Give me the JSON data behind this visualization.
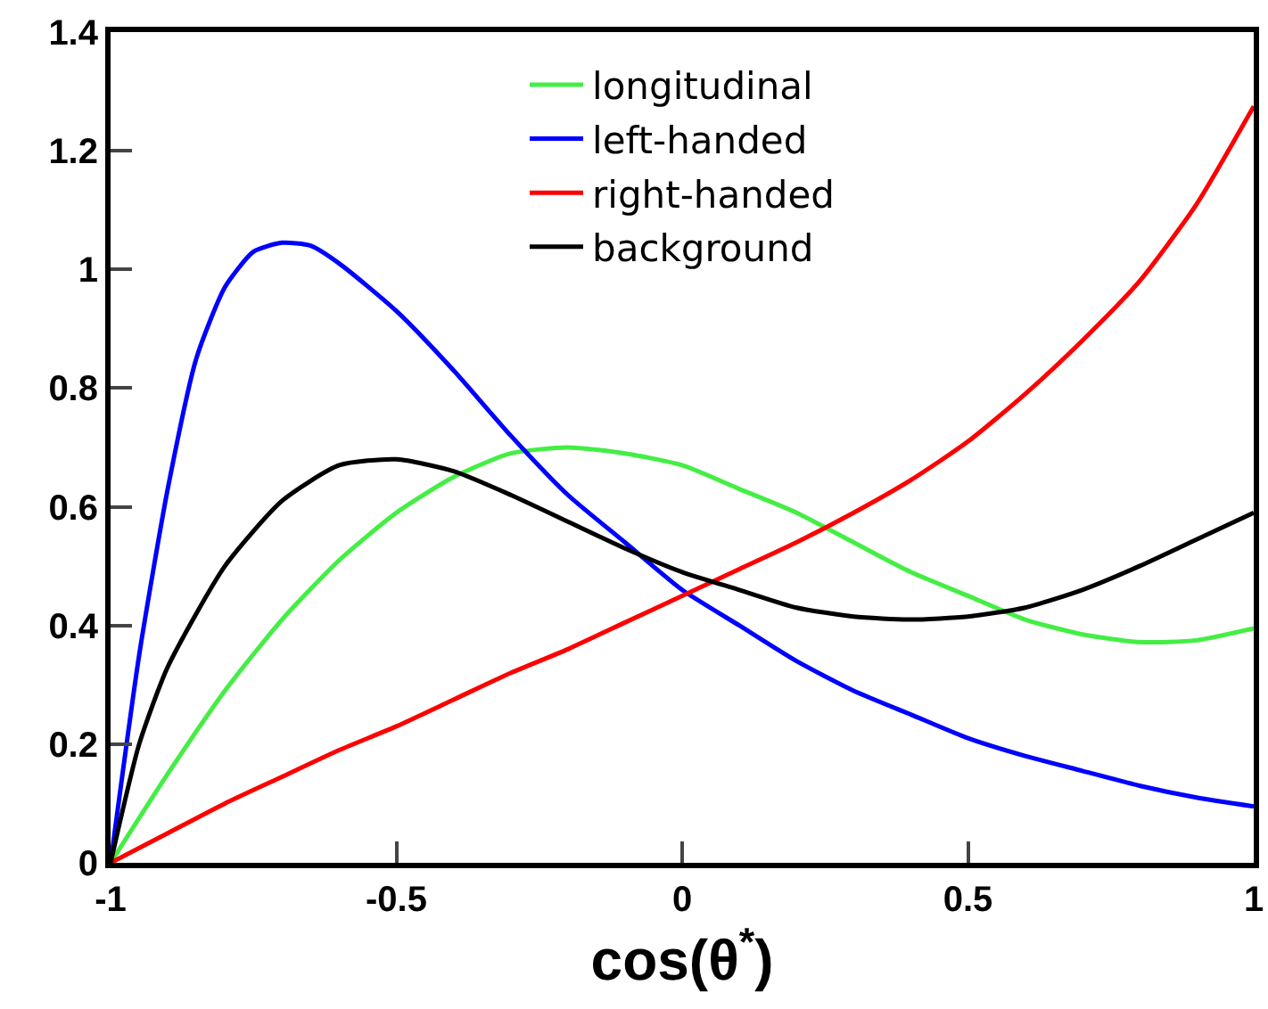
{
  "chart_data": {
    "type": "line",
    "xlabel": "cos(θ$^{*}$)",
    "xlim": [
      -1,
      1
    ],
    "xticks": [
      -1,
      -0.5,
      0,
      0.5,
      1
    ],
    "ylim": [
      0,
      1.4
    ],
    "yticks": [
      0,
      0.2,
      0.4,
      0.6,
      0.8,
      1,
      1.2,
      1.4
    ],
    "grid": false,
    "legend": "top",
    "marker": "none",
    "line_style": "solid",
    "series": [
      {
        "name": "longitudinal",
        "color": "#44ee44",
        "x": [
          -1,
          -0.9,
          -0.8,
          -0.7,
          -0.6,
          -0.5,
          -0.4,
          -0.3,
          -0.2,
          -0.1,
          0,
          0.1,
          0.2,
          0.3,
          0.4,
          0.5,
          0.6,
          0.7,
          0.8,
          0.9,
          1
        ],
        "values": [
          0,
          0.15,
          0.29,
          0.41,
          0.51,
          0.59,
          0.65,
          0.69,
          0.7,
          0.69,
          0.67,
          0.63,
          0.59,
          0.54,
          0.49,
          0.45,
          0.41,
          0.385,
          0.372,
          0.375,
          0.395
        ]
      },
      {
        "name": "left-handed",
        "color": "#0000ff",
        "x": [
          -1,
          -0.95,
          -0.9,
          -0.85,
          -0.8,
          -0.75,
          -0.7,
          -0.65,
          -0.6,
          -0.5,
          -0.4,
          -0.3,
          -0.2,
          -0.1,
          0,
          0.1,
          0.2,
          0.3,
          0.4,
          0.5,
          0.6,
          0.7,
          0.8,
          0.9,
          1
        ],
        "values": [
          0,
          0.35,
          0.63,
          0.85,
          0.97,
          1.03,
          1.045,
          1.04,
          1.01,
          0.93,
          0.83,
          0.72,
          0.62,
          0.54,
          0.46,
          0.4,
          0.34,
          0.29,
          0.25,
          0.21,
          0.18,
          0.155,
          0.13,
          0.11,
          0.095
        ]
      },
      {
        "name": "right-handed",
        "color": "#ff0000",
        "x": [
          -1,
          -0.9,
          -0.8,
          -0.7,
          -0.6,
          -0.5,
          -0.4,
          -0.3,
          -0.2,
          -0.1,
          0,
          0.1,
          0.2,
          0.3,
          0.4,
          0.5,
          0.6,
          0.7,
          0.8,
          0.9,
          1
        ],
        "values": [
          0,
          0.05,
          0.1,
          0.145,
          0.19,
          0.23,
          0.275,
          0.32,
          0.36,
          0.405,
          0.45,
          0.495,
          0.54,
          0.59,
          0.645,
          0.71,
          0.79,
          0.88,
          0.98,
          1.11,
          1.275
        ]
      },
      {
        "name": "background",
        "color": "#000000",
        "x": [
          -1,
          -0.95,
          -0.9,
          -0.8,
          -0.7,
          -0.6,
          -0.5,
          -0.4,
          -0.3,
          -0.2,
          -0.1,
          0,
          0.1,
          0.2,
          0.3,
          0.4,
          0.5,
          0.6,
          0.7,
          0.8,
          0.9,
          1
        ],
        "values": [
          0,
          0.2,
          0.33,
          0.5,
          0.61,
          0.67,
          0.68,
          0.66,
          0.62,
          0.575,
          0.53,
          0.49,
          0.46,
          0.43,
          0.415,
          0.41,
          0.415,
          0.43,
          0.46,
          0.5,
          0.545,
          0.59
        ]
      }
    ]
  }
}
